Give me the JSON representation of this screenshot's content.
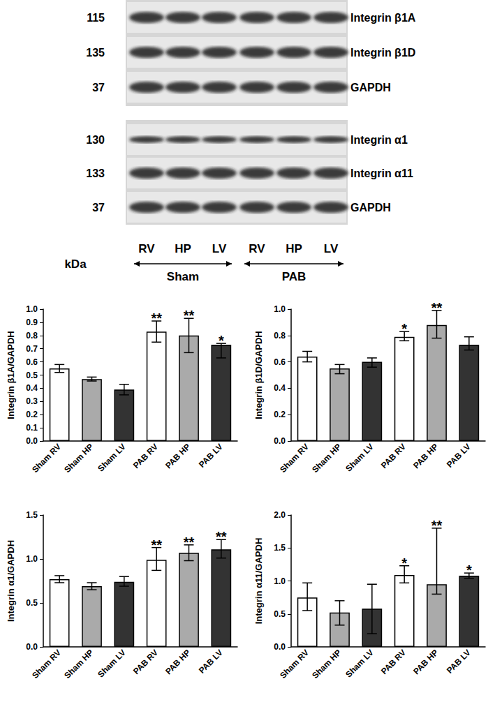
{
  "blot": {
    "kda": [
      115,
      135,
      37,
      130,
      133,
      37
    ],
    "proteins": [
      "Integrin β1A",
      "Integrin β1D",
      "GAPDH",
      "Integrin α1",
      "Integrin α11",
      "GAPDH"
    ],
    "lanes": [
      "RV",
      "HP",
      "LV",
      "RV",
      "HP",
      "LV"
    ],
    "kda_label": "kDa",
    "groups": [
      "Sham",
      "PAB"
    ]
  },
  "chart_data": [
    {
      "type": "bar",
      "ylabel": "Integrin β1A/GAPDH",
      "categories": [
        "Sham RV",
        "Sham HP",
        "Sham LV",
        "PAB RV",
        "PAB HP",
        "PAB LV"
      ],
      "values": [
        0.55,
        0.47,
        0.39,
        0.83,
        0.8,
        0.73
      ],
      "error_lower": [
        0.52,
        0.455,
        0.35,
        0.75,
        0.67,
        0.63
      ],
      "error_upper": [
        0.58,
        0.485,
        0.43,
        0.91,
        0.93,
        0.74
      ],
      "annotations": [
        null,
        null,
        null,
        "**",
        "**",
        "*"
      ],
      "colors": [
        "#ffffff",
        "#aaaaaa",
        "#333333",
        "#ffffff",
        "#aaaaaa",
        "#333333"
      ],
      "ylim": [
        0,
        1.0
      ],
      "yticks": [
        {
          "value": 0,
          "label": "0.0"
        },
        0.1,
        0.2,
        0.3,
        0.4,
        0.5,
        0.6,
        0.7,
        0.8,
        0.9,
        {
          "value": 1.0,
          "label": "1.0"
        }
      ],
      "grid": false
    },
    {
      "type": "bar",
      "ylabel": "Integrin β1D/GAPDH",
      "categories": [
        "Sham RV",
        "Sham HP",
        "Sham LV",
        "PAB RV",
        "PAB HP",
        "PAB LV"
      ],
      "values": [
        0.64,
        0.55,
        0.6,
        0.79,
        0.88,
        0.73
      ],
      "error_lower": [
        0.6,
        0.51,
        0.56,
        0.76,
        0.78,
        0.69
      ],
      "error_upper": [
        0.68,
        0.58,
        0.63,
        0.83,
        0.99,
        0.79
      ],
      "annotations": [
        null,
        null,
        null,
        "*",
        "**",
        null
      ],
      "colors": [
        "#ffffff",
        "#aaaaaa",
        "#333333",
        "#ffffff",
        "#aaaaaa",
        "#333333"
      ],
      "ylim": [
        0,
        1.0
      ],
      "yticks": [
        {
          "value": 0,
          "label": "0.0"
        },
        0.2,
        0.4,
        0.6,
        0.8,
        {
          "value": 1.0,
          "label": "1.0"
        }
      ],
      "grid": false
    },
    {
      "type": "bar",
      "ylabel": "Integrin α1/GAPDH",
      "categories": [
        "Sham RV",
        "Sham HP",
        "Sham LV",
        "PAB RV",
        "PAB HP",
        "PAB LV"
      ],
      "values": [
        0.77,
        0.69,
        0.74,
        0.99,
        1.07,
        1.11
      ],
      "error_lower": [
        0.73,
        0.65,
        0.69,
        0.87,
        0.98,
        1.01
      ],
      "error_upper": [
        0.81,
        0.73,
        0.8,
        1.13,
        1.16,
        1.22
      ],
      "annotations": [
        null,
        null,
        null,
        "**",
        "**",
        "**"
      ],
      "colors": [
        "#ffffff",
        "#aaaaaa",
        "#333333",
        "#ffffff",
        "#aaaaaa",
        "#333333"
      ],
      "ylim": [
        0,
        1.5
      ],
      "yticks": [
        {
          "value": 0,
          "label": "0.0"
        },
        0.5,
        {
          "value": 1.0,
          "label": "1.0"
        },
        1.5
      ],
      "grid": false
    },
    {
      "type": "bar",
      "ylabel": "Integrin α11/GAPDH",
      "categories": [
        "Sham RV",
        "Sham HP",
        "Sham LV",
        "PAB RV",
        "PAB HP",
        "PAB LV"
      ],
      "values": [
        0.75,
        0.52,
        0.58,
        1.09,
        0.95,
        1.08
      ],
      "error_lower": [
        0.55,
        0.33,
        0.2,
        0.97,
        0.8,
        1.04
      ],
      "error_upper": [
        0.97,
        0.7,
        0.95,
        1.23,
        1.8,
        1.12
      ],
      "annotations": [
        null,
        null,
        null,
        "*",
        "**",
        "*"
      ],
      "colors": [
        "#ffffff",
        "#aaaaaa",
        "#333333",
        "#ffffff",
        "#aaaaaa",
        "#333333"
      ],
      "ylim": [
        0,
        2.0
      ],
      "yticks": [
        {
          "value": 0,
          "label": "0.0"
        },
        0.5,
        {
          "value": 1.0,
          "label": "1.0"
        },
        1.5,
        {
          "value": 2.0,
          "label": "2.0"
        }
      ],
      "grid": false
    }
  ]
}
